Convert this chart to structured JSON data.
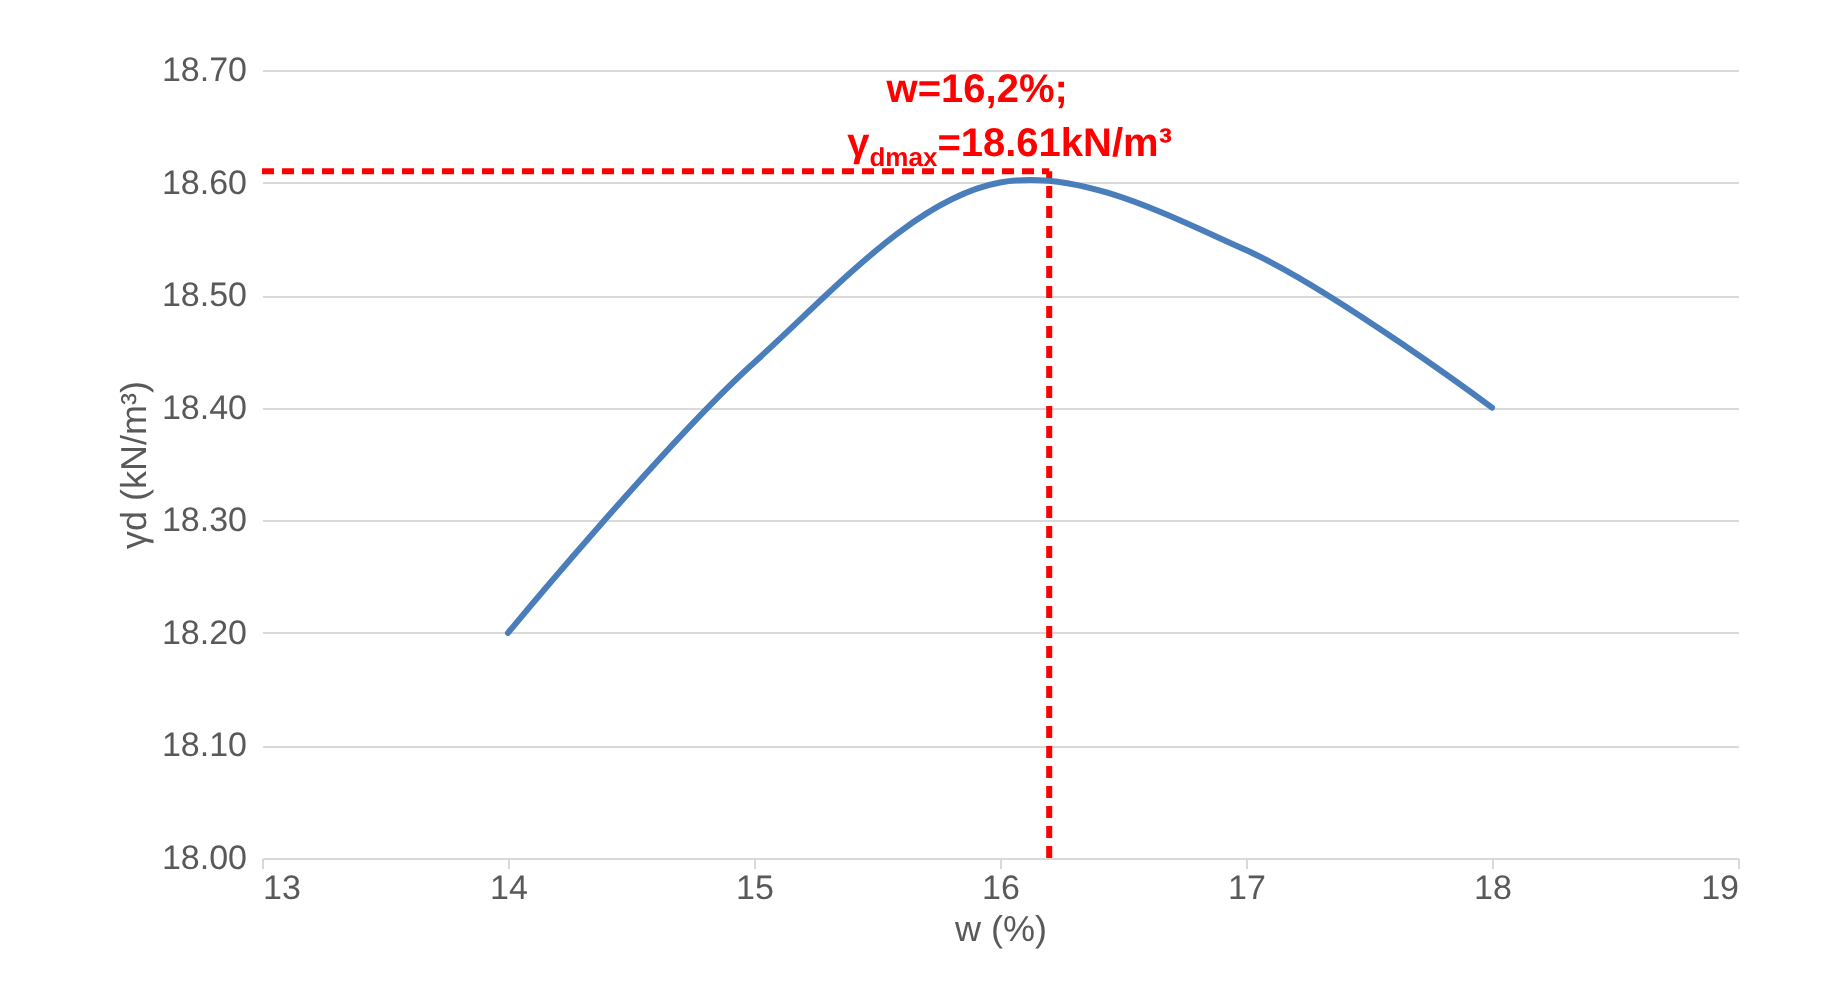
{
  "chart_data": {
    "type": "line",
    "xlabel": "w (%)",
    "ylabel": "γd (kN/m³)",
    "x": [
      14,
      15,
      16,
      17,
      18
    ],
    "series": [
      {
        "color": "#4a7ebb",
        "values": [
          18.2,
          18.44,
          18.6,
          18.54,
          18.4
        ]
      }
    ],
    "xlim": [
      13,
      19
    ],
    "xticks": [
      13,
      14,
      15,
      16,
      17,
      18,
      19
    ],
    "ylim": [
      18,
      18.7
    ],
    "yticks": [
      {
        "value": 18,
        "label": "18.00"
      },
      {
        "value": 18.1,
        "label": "18.10"
      },
      {
        "value": 18.2,
        "label": "18.20"
      },
      {
        "value": 18.3,
        "label": "18.30"
      },
      {
        "value": 18.4,
        "label": "18.40"
      },
      {
        "value": 18.5,
        "label": "18.50"
      },
      {
        "value": 18.6,
        "label": "18.60"
      },
      {
        "value": 18.7,
        "label": "18.70"
      }
    ],
    "grid": "y",
    "marker": "none",
    "line_style": "solid",
    "ref_lines": [
      {
        "axis": "x",
        "value": 16.2,
        "color": "#ff0000",
        "line_style": "dashed"
      },
      {
        "axis": "y",
        "value": 18.61,
        "color": "#ff0000",
        "line_style": "dashed"
      }
    ],
    "annotations": [
      {
        "text": "w=16,2%; γ$_{dmax}$=18.61kN/m³",
        "x": 16.2,
        "y": 18.61
      }
    ]
  }
}
